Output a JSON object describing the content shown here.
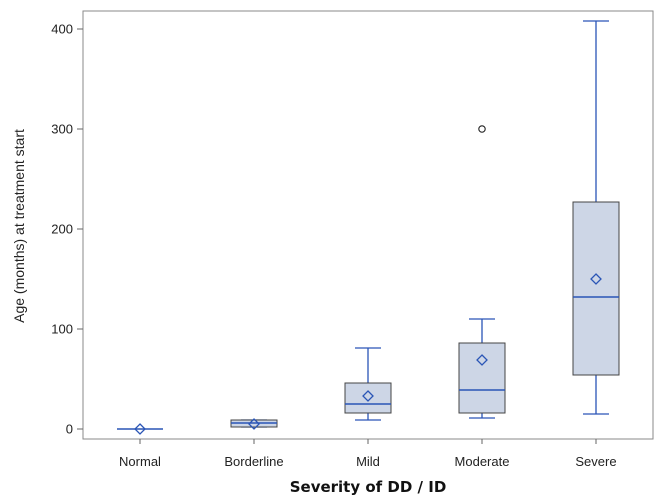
{
  "chart_data": {
    "type": "boxplot",
    "xlabel": "Severity of DD / ID",
    "ylabel": "Age (months) at treatment start",
    "ylim": [
      -15,
      418
    ],
    "yticks": [
      0,
      100,
      200,
      300,
      400
    ],
    "grid": false,
    "legend": "none",
    "categories": [
      "Normal",
      "Borderline",
      "Mild",
      "Moderate",
      "Severe"
    ],
    "boxes": [
      {
        "category": "Normal",
        "min": 0,
        "q1": 0,
        "median": 0,
        "q3": 0,
        "max": 0,
        "mean": 0,
        "outliers": []
      },
      {
        "category": "Borderline",
        "min": 2,
        "q1": 2,
        "median": 6,
        "q3": 9,
        "max": 9,
        "mean": 5,
        "outliers": []
      },
      {
        "category": "Mild",
        "min": 9,
        "q1": 16,
        "median": 25,
        "q3": 46,
        "max": 81,
        "mean": 33,
        "outliers": []
      },
      {
        "category": "Moderate",
        "min": 11,
        "q1": 16,
        "median": 39,
        "q3": 86,
        "max": 110,
        "mean": 69,
        "outliers": [
          300
        ]
      },
      {
        "category": "Severe",
        "min": 15,
        "q1": 54,
        "median": 132,
        "q3": 227,
        "max": 408,
        "mean": 150,
        "outliers": []
      }
    ],
    "colors": {
      "box_fill": "#cdd6e6",
      "box_stroke": "#444444",
      "whisker": "#2a55b6",
      "median": "#2a55b6",
      "mean_marker": "#2a55b6",
      "outlier": "#222222"
    }
  }
}
